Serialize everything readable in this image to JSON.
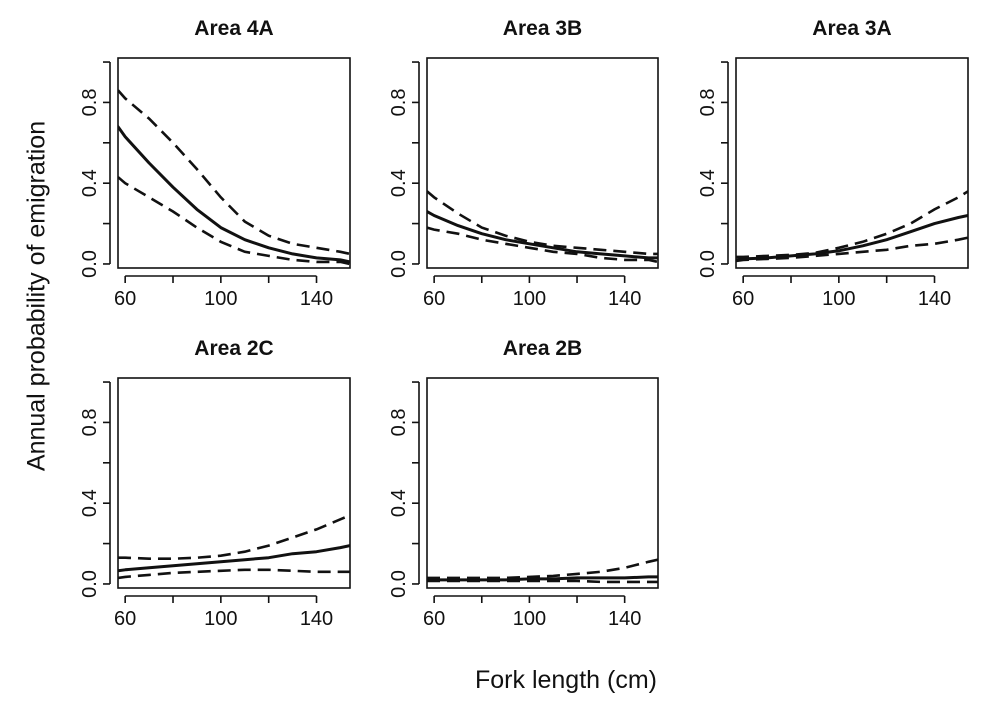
{
  "chart_data": {
    "type": "line",
    "ylabel": "Annual probability of emigration",
    "xlabel": "Fork length (cm)",
    "xlim": [
      57,
      154
    ],
    "ylim": [
      -0.02,
      1.02
    ],
    "xticks": [
      60,
      80,
      100,
      120,
      140
    ],
    "xtick_labels": [
      "60",
      "",
      "100",
      "",
      "140"
    ],
    "yticks": [
      0.0,
      0.2,
      0.4,
      0.6,
      0.8,
      1.0
    ],
    "ytick_labels": [
      "0.0",
      "",
      "0.4",
      "",
      "0.8",
      ""
    ],
    "grid": false,
    "x": [
      57,
      60,
      70,
      80,
      90,
      100,
      110,
      120,
      130,
      140,
      150,
      154
    ],
    "panels": [
      {
        "title": "Area 4A",
        "series": [
          {
            "style": "solid",
            "values": [
              0.68,
              0.63,
              0.5,
              0.38,
              0.27,
              0.18,
              0.12,
              0.08,
              0.05,
              0.03,
              0.02,
              0.01
            ]
          },
          {
            "style": "dashed",
            "values": [
              0.86,
              0.82,
              0.72,
              0.6,
              0.47,
              0.33,
              0.21,
              0.14,
              0.1,
              0.08,
              0.06,
              0.05
            ]
          },
          {
            "style": "dashed",
            "values": [
              0.43,
              0.4,
              0.33,
              0.26,
              0.18,
              0.11,
              0.06,
              0.04,
              0.02,
              0.01,
              0.01,
              0.0
            ]
          }
        ]
      },
      {
        "title": "Area 3B",
        "series": [
          {
            "style": "solid",
            "values": [
              0.26,
              0.24,
              0.19,
              0.15,
              0.12,
              0.1,
              0.08,
              0.06,
              0.05,
              0.04,
              0.03,
              0.03
            ]
          },
          {
            "style": "dashed",
            "values": [
              0.36,
              0.33,
              0.25,
              0.18,
              0.14,
              0.11,
              0.09,
              0.08,
              0.07,
              0.06,
              0.05,
              0.05
            ]
          },
          {
            "style": "dashed",
            "values": [
              0.18,
              0.17,
              0.15,
              0.12,
              0.1,
              0.08,
              0.06,
              0.05,
              0.03,
              0.02,
              0.02,
              0.01
            ]
          }
        ]
      },
      {
        "title": "Area 3A",
        "series": [
          {
            "style": "solid",
            "values": [
              0.02,
              0.025,
              0.03,
              0.04,
              0.05,
              0.065,
              0.09,
              0.12,
              0.16,
              0.2,
              0.23,
              0.24
            ]
          },
          {
            "style": "dashed",
            "values": [
              0.035,
              0.035,
              0.04,
              0.045,
              0.055,
              0.08,
              0.11,
              0.15,
              0.2,
              0.27,
              0.33,
              0.36
            ]
          },
          {
            "style": "dashed",
            "values": [
              0.015,
              0.02,
              0.025,
              0.03,
              0.04,
              0.05,
              0.06,
              0.07,
              0.09,
              0.1,
              0.12,
              0.13
            ]
          }
        ]
      },
      {
        "title": "Area 2C",
        "series": [
          {
            "style": "solid",
            "values": [
              0.065,
              0.07,
              0.08,
              0.09,
              0.1,
              0.11,
              0.12,
              0.13,
              0.15,
              0.16,
              0.18,
              0.19
            ]
          },
          {
            "style": "dashed",
            "values": [
              0.13,
              0.13,
              0.125,
              0.125,
              0.13,
              0.14,
              0.16,
              0.19,
              0.23,
              0.27,
              0.32,
              0.34
            ]
          },
          {
            "style": "dashed",
            "values": [
              0.03,
              0.035,
              0.045,
              0.055,
              0.06,
              0.065,
              0.07,
              0.07,
              0.065,
              0.06,
              0.06,
              0.06
            ]
          }
        ]
      },
      {
        "title": "Area 2B",
        "series": [
          {
            "style": "solid",
            "values": [
              0.02,
              0.02,
              0.02,
              0.02,
              0.02,
              0.025,
              0.025,
              0.03,
              0.03,
              0.03,
              0.035,
              0.035
            ]
          },
          {
            "style": "dashed",
            "values": [
              0.03,
              0.03,
              0.03,
              0.03,
              0.03,
              0.035,
              0.04,
              0.05,
              0.06,
              0.08,
              0.11,
              0.12
            ]
          },
          {
            "style": "dashed",
            "values": [
              0.015,
              0.015,
              0.015,
              0.015,
              0.015,
              0.015,
              0.015,
              0.015,
              0.01,
              0.01,
              0.01,
              0.01
            ]
          }
        ]
      }
    ]
  }
}
